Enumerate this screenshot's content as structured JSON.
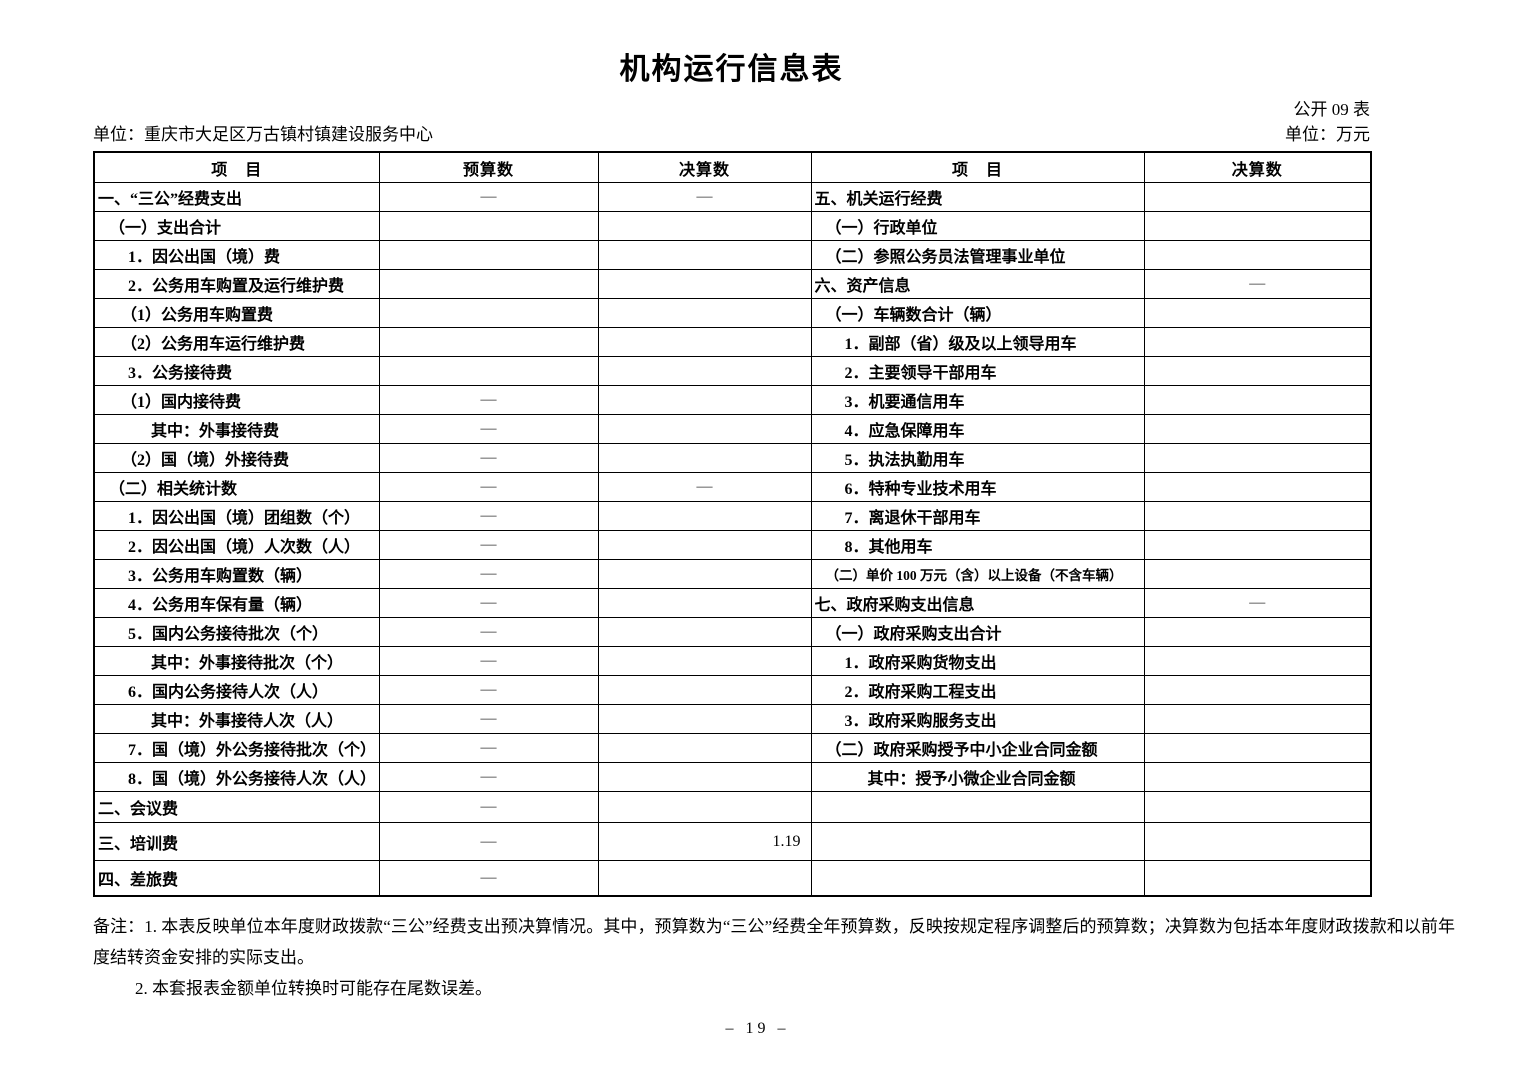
{
  "page": {
    "title": "机构运行信息表",
    "table_code": "公开 09 表",
    "unit_label": "单位：重庆市大足区万古镇村镇建设服务中心",
    "currency_label": "单位：万元",
    "page_number": "– 19 –"
  },
  "table": {
    "headers": [
      "项　目",
      "预算数",
      "决算数",
      "项　目",
      "决算数"
    ],
    "left_rows": [
      {
        "label": "一、“三公”经费支出",
        "indent": 0,
        "budget": "—",
        "final": "—"
      },
      {
        "label": "（一）支出合计",
        "indent": 1,
        "budget": "",
        "final": ""
      },
      {
        "label": "1．因公出国（境）费",
        "indent": 2,
        "budget": "",
        "final": ""
      },
      {
        "label": "2．公务用车购置及运行维护费",
        "indent": 2,
        "budget": "",
        "final": ""
      },
      {
        "label": "（1）公务用车购置费",
        "indent": 3,
        "budget": "",
        "final": ""
      },
      {
        "label": "（2）公务用车运行维护费",
        "indent": 3,
        "budget": "",
        "final": ""
      },
      {
        "label": "3．公务接待费",
        "indent": 2,
        "budget": "",
        "final": ""
      },
      {
        "label": "（1）国内接待费",
        "indent": 3,
        "budget": "—",
        "final": ""
      },
      {
        "label": "其中：外事接待费",
        "indent": 4,
        "budget": "—",
        "final": ""
      },
      {
        "label": "（2）国（境）外接待费",
        "indent": 3,
        "budget": "—",
        "final": ""
      },
      {
        "label": "（二）相关统计数",
        "indent": 1,
        "budget": "—",
        "final": "—"
      },
      {
        "label": "1．因公出国（境）团组数（个）",
        "indent": 2,
        "budget": "—",
        "final": ""
      },
      {
        "label": "2．因公出国（境）人次数（人）",
        "indent": 2,
        "budget": "—",
        "final": ""
      },
      {
        "label": "3．公务用车购置数（辆）",
        "indent": 2,
        "budget": "—",
        "final": ""
      },
      {
        "label": "4．公务用车保有量（辆）",
        "indent": 2,
        "budget": "—",
        "final": ""
      },
      {
        "label": "5．国内公务接待批次（个）",
        "indent": 2,
        "budget": "—",
        "final": ""
      },
      {
        "label": "其中：外事接待批次（个）",
        "indent": 4,
        "budget": "—",
        "final": ""
      },
      {
        "label": "6．国内公务接待人次（人）",
        "indent": 2,
        "budget": "—",
        "final": ""
      },
      {
        "label": "其中：外事接待人次（人）",
        "indent": 4,
        "budget": "—",
        "final": ""
      },
      {
        "label": "7．国（境）外公务接待批次（个）",
        "indent": 2,
        "budget": "—",
        "final": ""
      },
      {
        "label": "8．国（境）外公务接待人次（人）",
        "indent": 2,
        "budget": "—",
        "final": ""
      },
      {
        "label": "二、会议费",
        "indent": 0,
        "budget": "—",
        "final": ""
      },
      {
        "label": "三、培训费",
        "indent": 0,
        "budget": "—",
        "final": "1.19"
      },
      {
        "label": "四、差旅费",
        "indent": 0,
        "budget": "—",
        "final": ""
      }
    ],
    "right_rows": [
      {
        "label": "五、机关运行经费",
        "indent": 0,
        "final": ""
      },
      {
        "label": "（一）行政单位",
        "indent": 1,
        "final": ""
      },
      {
        "label": "（二）参照公务员法管理事业单位",
        "indent": 1,
        "final": ""
      },
      {
        "label": "六、资产信息",
        "indent": 0,
        "final": "—"
      },
      {
        "label": "（一）车辆数合计（辆）",
        "indent": 1,
        "final": ""
      },
      {
        "label": "1．副部（省）级及以上领导用车",
        "indent": 2,
        "final": ""
      },
      {
        "label": "2．主要领导干部用车",
        "indent": 2,
        "final": ""
      },
      {
        "label": "3．机要通信用车",
        "indent": 2,
        "final": ""
      },
      {
        "label": "4．应急保障用车",
        "indent": 2,
        "final": ""
      },
      {
        "label": "5．执法执勤用车",
        "indent": 2,
        "final": ""
      },
      {
        "label": "6．特种专业技术用车",
        "indent": 2,
        "final": ""
      },
      {
        "label": "7．离退休干部用车",
        "indent": 2,
        "final": ""
      },
      {
        "label": "8．其他用车",
        "indent": 2,
        "final": ""
      },
      {
        "label": "（二）单价 100 万元（含）以上设备（不含车辆）",
        "indent": 1,
        "final": ""
      },
      {
        "label": "七、政府采购支出信息",
        "indent": 0,
        "final": "—"
      },
      {
        "label": "（一）政府采购支出合计",
        "indent": 1,
        "final": ""
      },
      {
        "label": "1．政府采购货物支出",
        "indent": 2,
        "final": ""
      },
      {
        "label": "2．政府采购工程支出",
        "indent": 2,
        "final": ""
      },
      {
        "label": "3．政府采购服务支出",
        "indent": 2,
        "final": ""
      },
      {
        "label": "（二）政府采购授予中小企业合同金额",
        "indent": 1,
        "final": ""
      },
      {
        "label": "其中：授予小微企业合同金额",
        "indent": 4,
        "final": ""
      },
      {
        "label": "",
        "indent": 0,
        "final": ""
      },
      {
        "label": "",
        "indent": 0,
        "final": ""
      },
      {
        "label": "",
        "indent": 0,
        "final": ""
      }
    ]
  },
  "notes": [
    "备注：1. 本表反映单位本年度财政拨款“三公”经费支出预决算情况。其中，预算数为“三公”经费全年预算数，反映按规定程序调整后的预算数；决算数为包括本年度财政拨款和以前年度结转资金安排的实际支出。",
    "2. 本套报表金额单位转换时可能存在尾数误差。"
  ]
}
